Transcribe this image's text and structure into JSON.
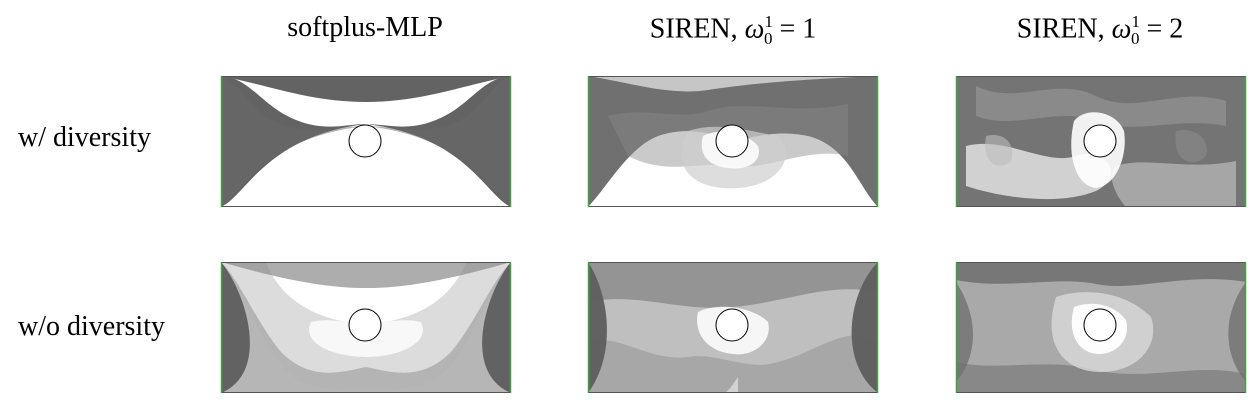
{
  "columns": [
    {
      "label": "softplus-MLP"
    },
    {
      "prefix": "SIREN, ",
      "omega": "ω",
      "sup": "1",
      "sub": "0",
      "equals": " = 1"
    },
    {
      "prefix": "SIREN, ",
      "omega": "ω",
      "sup": "1",
      "sub": "0",
      "equals": " = 2"
    }
  ],
  "rows": [
    {
      "label": "w/ diversity"
    },
    {
      "label": "w/o diversity"
    }
  ],
  "colors": {
    "material": "#606060",
    "frame": "#555555",
    "boundary": "#3fa63f",
    "hole": "#000000"
  }
}
